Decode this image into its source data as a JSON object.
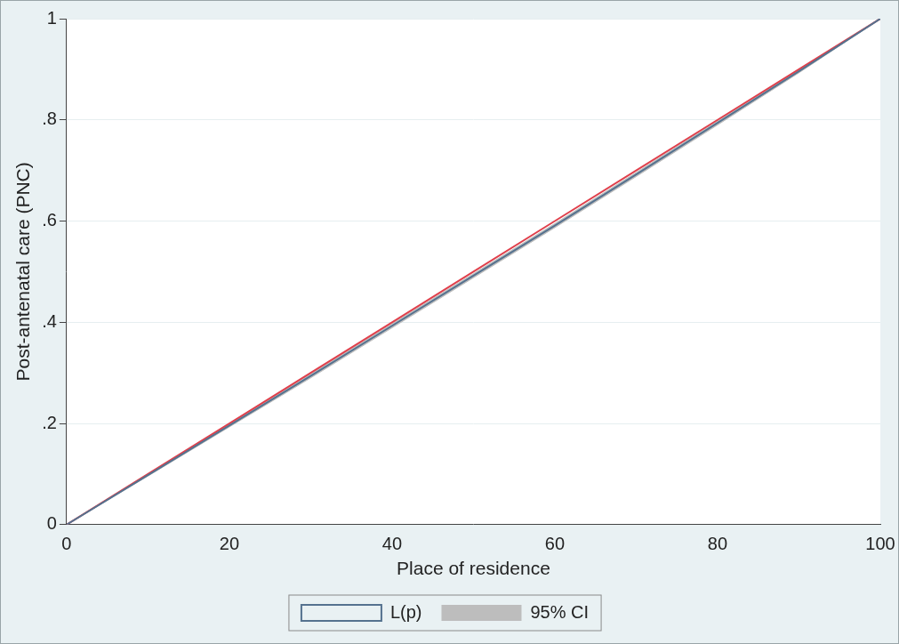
{
  "chart_data": {
    "type": "line",
    "x_label": "Place of residence",
    "y_label": "Post-antenatal care (PNC)",
    "x": [
      0,
      10,
      20,
      30,
      40,
      50,
      60,
      70,
      80,
      90,
      100
    ],
    "series": [
      {
        "name": "L(p)",
        "color": "#55728f",
        "values": [
          0,
          0.098,
          0.196,
          0.294,
          0.393,
          0.492,
          0.591,
          0.692,
          0.794,
          0.896,
          1
        ]
      },
      {
        "color": "#e0404c",
        "values": [
          0,
          0.1,
          0.2,
          0.3,
          0.4,
          0.5,
          0.6,
          0.7,
          0.8,
          0.9,
          1
        ]
      },
      {
        "name": "95% CI",
        "type": "area",
        "color": "#bdbdbd",
        "lower": [
          0,
          0.096,
          0.193,
          0.29,
          0.389,
          0.488,
          0.587,
          0.688,
          0.79,
          0.893,
          1
        ],
        "upper": [
          0,
          0.1,
          0.199,
          0.298,
          0.397,
          0.496,
          0.595,
          0.696,
          0.798,
          0.899,
          1
        ]
      }
    ],
    "xlim": [
      0,
      100
    ],
    "xticks": [
      0,
      20,
      40,
      60,
      80,
      100
    ],
    "ylim": [
      0,
      1
    ],
    "yticks": [
      0,
      {
        "value": 0.2,
        "label": ".2"
      },
      {
        "value": 0.4,
        "label": ".4"
      },
      {
        "value": 0.6,
        "label": ".6"
      },
      {
        "value": 0.8,
        "label": ".8"
      },
      1
    ],
    "grid": true,
    "legend": "bottom"
  }
}
